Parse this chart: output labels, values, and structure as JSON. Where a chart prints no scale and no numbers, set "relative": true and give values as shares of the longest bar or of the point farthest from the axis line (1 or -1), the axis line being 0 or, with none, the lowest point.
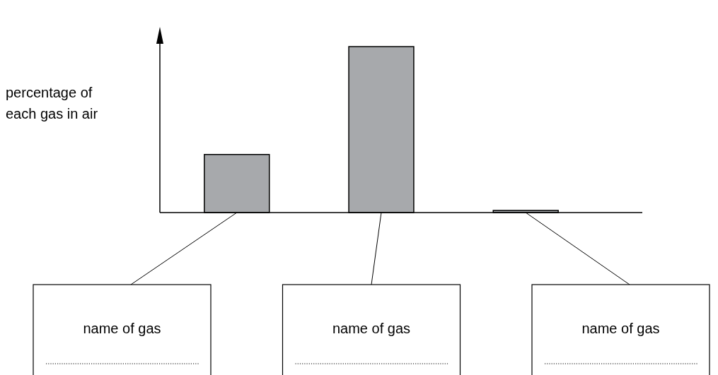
{
  "chart_data": {
    "type": "bar",
    "ylabel": "percentage of each gas in air",
    "categories": [
      null,
      null,
      null
    ],
    "values": [
      0.35,
      1,
      0.013
    ],
    "color": "#a7a9ac",
    "relative": true,
    "annotations": [
      "name of gas",
      "name of gas",
      "name of gas"
    ]
  }
}
